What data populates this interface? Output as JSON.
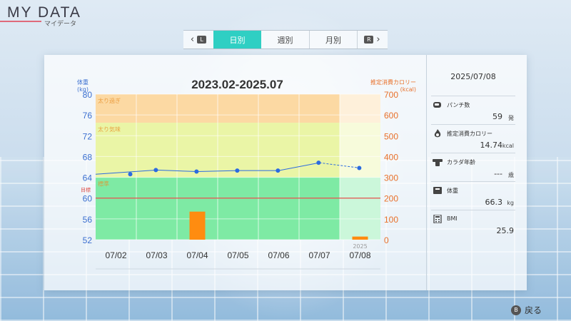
{
  "app": {
    "title": "MY DATA",
    "subtitle": "マイデータ"
  },
  "tabs": {
    "prev_glyph": "L",
    "next_glyph": "R",
    "items": [
      {
        "label": "日別",
        "active": true
      },
      {
        "label": "週別",
        "active": false
      },
      {
        "label": "月別",
        "active": false
      }
    ]
  },
  "chart_data": {
    "type": "line",
    "title": "2023.02-2025.07",
    "left_axis": {
      "label": "体重",
      "unit": "(kg)",
      "ticks": [
        80,
        76,
        72,
        68,
        64,
        60,
        56,
        52
      ],
      "range": [
        52,
        80
      ],
      "target_label": "目標",
      "color": "#3b6fd0"
    },
    "right_axis": {
      "label": "推定消費カロリー",
      "unit": "(kcal)",
      "ticks": [
        700,
        600,
        500,
        400,
        300,
        200,
        100,
        0
      ],
      "range": [
        0,
        700
      ],
      "color": "#e8702a"
    },
    "categories": [
      "07/02",
      "07/03",
      "07/04",
      "07/05",
      "07/06",
      "07/07",
      "07/08"
    ],
    "year_label": "2025",
    "zones": [
      {
        "label": "太り過ぎ",
        "from": 74.5,
        "to": 80,
        "color": "#fcd9a3"
      },
      {
        "label": "太り気味",
        "from": 64,
        "to": 74.5,
        "color": "#eaf5a6"
      },
      {
        "label": "標準",
        "from": 52,
        "to": 64,
        "color": "#7eeaa4"
      }
    ],
    "target_weight": 60,
    "series": [
      {
        "values": [
          64.6,
          65.4,
          65.1,
          65.3,
          65.3,
          66.8,
          65.8
        ],
        "color": "#2c6be0",
        "projected_from_index": 5
      },
      {
        "values": [
          0,
          0,
          135,
          0,
          0,
          0,
          15
        ],
        "color": "#ff8c10"
      }
    ],
    "grid": true
  },
  "side": {
    "date": "2025/07/08",
    "stats": [
      {
        "icon": "punch-icon",
        "label": "パンチ数",
        "value": "59",
        "unit": "発"
      },
      {
        "icon": "flame-icon",
        "label": "推定消費カロリー",
        "value": "14.74",
        "unit": "kcal"
      },
      {
        "icon": "muscle-icon",
        "label": "カラダ年齢",
        "value": "---",
        "unit": "歳"
      },
      {
        "icon": "scale-icon",
        "label": "体重",
        "value": "66.3",
        "unit": "kg"
      },
      {
        "icon": "calculator-icon",
        "label": "BMI",
        "value": "25.9",
        "unit": ""
      }
    ]
  },
  "footer": {
    "back_glyph": "B",
    "back_label": "戻る"
  }
}
